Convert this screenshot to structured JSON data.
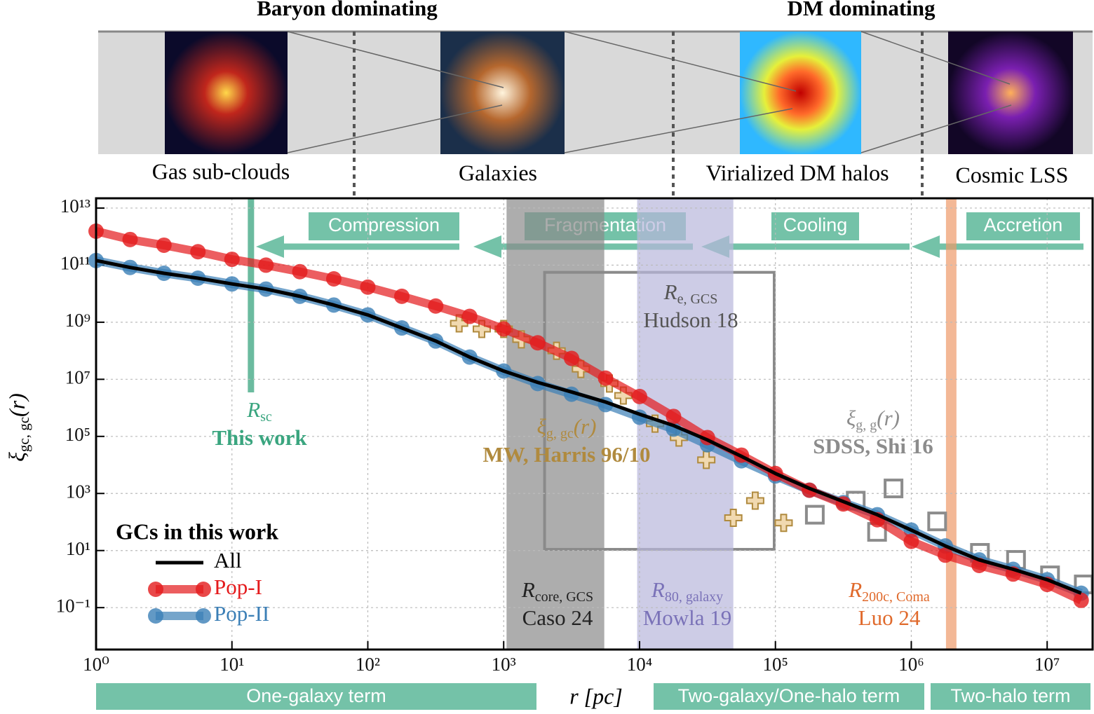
{
  "header": {
    "left": "Baryon dominating",
    "right": "DM dominating",
    "panels": [
      "Gas sub-clouds",
      "Galaxies",
      "Virialized DM halos",
      "Cosmic LSS"
    ]
  },
  "processes": [
    "Compression",
    "Fragmentation",
    "Cooling",
    "Accretion"
  ],
  "terms": [
    "One-galaxy term",
    "Two-galaxy/One-halo term",
    "Two-halo term"
  ],
  "chart_data": {
    "type": "line",
    "x_label": "r [pc]",
    "y_label": {
      "symbol": "ξ",
      "subscript": "gc, gc",
      "suffix": "(r)"
    },
    "log_x": true,
    "log_y": true,
    "grid": true,
    "xlim": [
      1,
      21600000
    ],
    "ylim": [
      0.0034,
      22000000000000
    ],
    "xticks": [
      {
        "value": 1,
        "label": "10⁰"
      },
      {
        "value": 10,
        "label": "10¹"
      },
      {
        "value": 100,
        "label": "10²"
      },
      {
        "value": 1000,
        "label": "10³"
      },
      {
        "value": 10000,
        "label": "10⁴"
      },
      {
        "value": 100000,
        "label": "10⁵"
      },
      {
        "value": 1000000,
        "label": "10⁶"
      },
      {
        "value": 10000000,
        "label": "10⁷"
      }
    ],
    "yticks": [
      {
        "value": 0.1,
        "label": "10⁻¹"
      },
      {
        "value": 10,
        "label": "10¹"
      },
      {
        "value": 1000,
        "label": "10³"
      },
      {
        "value": 100000,
        "label": "10⁵"
      },
      {
        "value": 10000000,
        "label": "10⁷"
      },
      {
        "value": 1000000000,
        "label": "10⁹"
      },
      {
        "value": 100000000000,
        "label": "10¹¹"
      },
      {
        "value": 10000000000000,
        "label": "10¹³"
      }
    ],
    "legend": {
      "title": "GCs in this work",
      "position": "lower left"
    },
    "x": [
      1,
      1.78,
      3.16,
      5.62,
      10,
      17.8,
      31.6,
      56.2,
      100,
      178,
      316,
      562,
      1000,
      1780,
      3160,
      5620,
      10000,
      17800,
      31600,
      56200,
      100000,
      178000,
      316000,
      562000,
      1000000,
      1780000,
      3160000,
      5620000,
      10000000,
      17800000
    ],
    "series": [
      {
        "name": "All",
        "color": "#000000",
        "marker": "none",
        "values": [
          145000000000.0,
          83000000000.0,
          52000000000.0,
          35000000000.0,
          22000000000.0,
          14500000000.0,
          8100000000.0,
          4000000000.0,
          1800000000.0,
          630000000.0,
          220000000.0,
          60000000.0,
          19500000.0,
          7800000.0,
          3600000.0,
          1600000.0,
          600000.0,
          240000.0,
          75000.0,
          20000.0,
          5000.0,
          1500.0,
          520,
          180,
          52,
          14.5,
          4.7,
          2.2,
          0.95,
          0.32
        ]
      },
      {
        "name": "Pop-I",
        "color": "#e41a1c",
        "marker": "circle",
        "values": [
          1550000000000.0,
          790000000000.0,
          500000000000.0,
          295000000000.0,
          160000000000.0,
          100000000000.0,
          59000000000.0,
          33000000000.0,
          17000000000.0,
          8100000000.0,
          3700000000.0,
          1600000000.0,
          580000000.0,
          190000000.0,
          54000000.0,
          11000000.0,
          2500000.0,
          500000.0,
          91000.0,
          22000.0,
          5000.0,
          1300.0,
          430,
          120,
          21,
          6.9,
          3.0,
          1.5,
          0.65,
          0.18
        ]
      },
      {
        "name": "Pop-II",
        "color": "#3b7fb6",
        "marker": "circle",
        "values": [
          145000000000.0,
          83000000000.0,
          52000000000.0,
          35000000000.0,
          22000000000.0,
          14500000000.0,
          8100000000.0,
          4000000000.0,
          1800000000.0,
          630000000.0,
          220000000.0,
          60000000.0,
          19500000.0,
          7100000.0,
          3000000.0,
          1300000.0,
          470000.0,
          180000.0,
          51000.0,
          14000.0,
          4100.0,
          1300.0,
          480,
          180,
          52,
          14.5,
          4.7,
          2.2,
          0.95,
          0.32
        ]
      }
    ],
    "references": [
      {
        "symbol": "ξ",
        "subscript": "g, gc",
        "suffix": "(r)",
        "source": "MW, Harris 96/10",
        "color": "#b08a3e",
        "marker": "plus",
        "x": [
          470,
          690,
          1000,
          1350,
          2450,
          3700,
          6000,
          7600,
          13000,
          19500,
          31000,
          49000,
          71000,
          115000
        ],
        "values": [
          910000000.0,
          580000000.0,
          580000000.0,
          250000000.0,
          100000000.0,
          23000000.0,
          7100000.0,
          2700000.0,
          280000.0,
          91000.0,
          15000.0,
          140,
          560,
          93
        ]
      },
      {
        "symbol": "ξ",
        "subscript": "g, g",
        "suffix": "(r)",
        "source": "SDSS, Shi 16",
        "color": "#8c8c8c",
        "marker": "square",
        "x": [
          195000,
          390000,
          560000,
          740000,
          1550000,
          3200000,
          5900000,
          10500000,
          18600000
        ],
        "values": [
          180,
          560,
          45,
          1500,
          105,
          8.3,
          4.7,
          1.35,
          0.65
        ]
      }
    ],
    "scales": [
      {
        "symbol": "R",
        "subscript": "sc",
        "source": "This work",
        "color": "#3aa57f",
        "line": 13.8
      },
      {
        "symbol": "R",
        "subscript": "e, GCS",
        "source": "Hudson 18",
        "color": "#555555",
        "box": {
          "x": [
            2000,
            98000
          ],
          "y": [
            56000000000,
            11
          ]
        }
      },
      {
        "symbol": "R",
        "subscript": "core, GCS",
        "source": "Caso 24",
        "color": "#222222",
        "band": [
          1050,
          5500
        ],
        "band_color": "#8a8a8a"
      },
      {
        "symbol": "R",
        "subscript": "80, galaxy",
        "source": "Mowla 19",
        "color": "#7a72b8",
        "band": [
          9600,
          49000
        ],
        "band_color": "#b8b6dc"
      },
      {
        "symbol": "R",
        "subscript": "200c, Coma",
        "source": "Luo 24",
        "color": "#e06a2c",
        "band": [
          1800000,
          2150000
        ],
        "band_color": "#ee9a6a"
      }
    ]
  }
}
